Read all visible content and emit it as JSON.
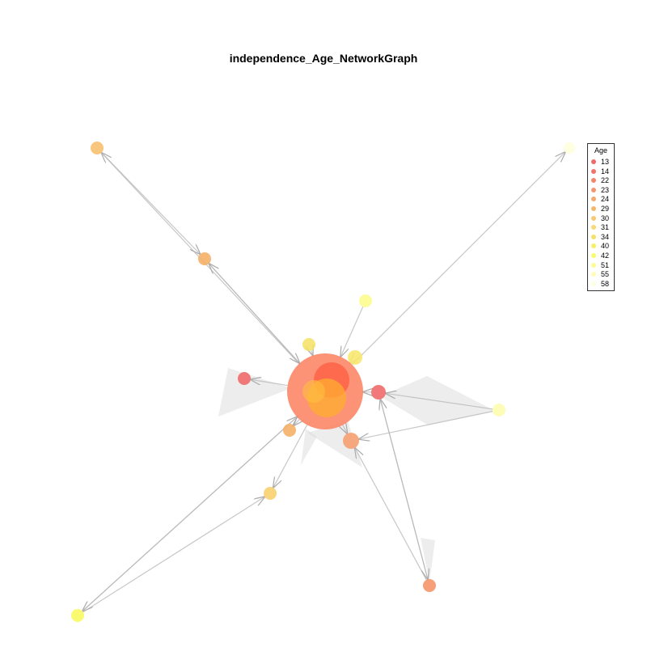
{
  "title": "independence_Age_NetworkGraph",
  "legend": {
    "title": "Age",
    "entries": [
      {
        "label": "13",
        "color": "#f06a6a"
      },
      {
        "label": "14",
        "color": "#f07468"
      },
      {
        "label": "22",
        "color": "#f4846a"
      },
      {
        "label": "23",
        "color": "#f59570"
      },
      {
        "label": "24",
        "color": "#f5a86e"
      },
      {
        "label": "29",
        "color": "#f5b86a"
      },
      {
        "label": "30",
        "color": "#f8c874"
      },
      {
        "label": "31",
        "color": "#f8d878"
      },
      {
        "label": "34",
        "color": "#f4e06a"
      },
      {
        "label": "40",
        "color": "#f8f060"
      },
      {
        "label": "42",
        "color": "#fafa70"
      },
      {
        "label": "51",
        "color": "#fcfc90"
      },
      {
        "label": "55",
        "color": "#fdfdb8"
      },
      {
        "label": "58",
        "color": "#fefee0"
      }
    ]
  },
  "network": {
    "nodes": [
      {
        "id": "hub",
        "age": "22",
        "color": "#fb7f5e",
        "alpha": 0.85
      },
      {
        "id": "hub-inner-red",
        "age": "13",
        "color": "#ff5a3c",
        "alpha": 0.7
      },
      {
        "id": "hub-inner-orange",
        "age": "29",
        "color": "#ffae30",
        "alpha": 0.75
      },
      {
        "id": "hub-inner-yellow",
        "age": "31",
        "color": "#ffc040",
        "alpha": 0.6
      },
      {
        "id": "n-top-left",
        "age": "30",
        "color": "#f8c070",
        "alpha": 0.9
      },
      {
        "id": "n-mid-left-upper",
        "age": "29",
        "color": "#f5b068",
        "alpha": 0.9
      },
      {
        "id": "n-top-right",
        "age": "58",
        "color": "#fefee0",
        "alpha": 1
      },
      {
        "id": "n-upper-right-center",
        "age": "40",
        "color": "#f8e870",
        "alpha": 0.9
      },
      {
        "id": "n-upper-center",
        "age": "51",
        "color": "#fcfc90",
        "alpha": 0.9
      },
      {
        "id": "n-upper-center-2",
        "age": "34",
        "color": "#f4e060",
        "alpha": 0.85
      },
      {
        "id": "n-left",
        "age": "13",
        "color": "#f06a6a",
        "alpha": 0.9
      },
      {
        "id": "n-right-red",
        "age": "14",
        "color": "#f06a6a",
        "alpha": 0.9
      },
      {
        "id": "n-right",
        "age": "55",
        "color": "#fdfdb8",
        "alpha": 1
      },
      {
        "id": "n-lower-left-center",
        "age": "29",
        "color": "#f5b068",
        "alpha": 0.9
      },
      {
        "id": "n-lower-right-center",
        "age": "24",
        "color": "#f5a070",
        "alpha": 0.9
      },
      {
        "id": "n-lower-mid",
        "age": "31",
        "color": "#f8d070",
        "alpha": 0.9
      },
      {
        "id": "n-bottom-left",
        "age": "42",
        "color": "#fafa70",
        "alpha": 1
      },
      {
        "id": "n-bottom-right",
        "age": "23",
        "color": "#f5956a",
        "alpha": 0.9
      }
    ],
    "edges": [
      {
        "from": "hub",
        "to": "n-top-left"
      },
      {
        "from": "n-top-left",
        "to": "n-mid-left-upper"
      },
      {
        "from": "n-mid-left-upper",
        "to": "hub"
      },
      {
        "from": "hub",
        "to": "n-mid-left-upper"
      },
      {
        "from": "hub",
        "to": "n-top-right"
      },
      {
        "from": "hub",
        "to": "n-upper-right-center"
      },
      {
        "from": "n-upper-center",
        "to": "hub"
      },
      {
        "from": "n-upper-center-2",
        "to": "hub"
      },
      {
        "from": "hub",
        "to": "n-left"
      },
      {
        "from": "n-right-red",
        "to": "hub"
      },
      {
        "from": "n-right",
        "to": "n-right-red"
      },
      {
        "from": "n-right",
        "to": "n-lower-right-center"
      },
      {
        "from": "hub",
        "to": "n-lower-right-center"
      },
      {
        "from": "hub",
        "to": "n-lower-left-center"
      },
      {
        "from": "hub",
        "to": "n-lower-mid"
      },
      {
        "from": "hub",
        "to": "n-bottom-left"
      },
      {
        "from": "n-bottom-left",
        "to": "hub"
      },
      {
        "from": "n-bottom-left",
        "to": "n-lower-mid"
      },
      {
        "from": "n-bottom-right",
        "to": "n-lower-right-center"
      },
      {
        "from": "n-bottom-right",
        "to": "n-right-red"
      },
      {
        "from": "n-right-red",
        "to": "n-bottom-right"
      }
    ]
  }
}
